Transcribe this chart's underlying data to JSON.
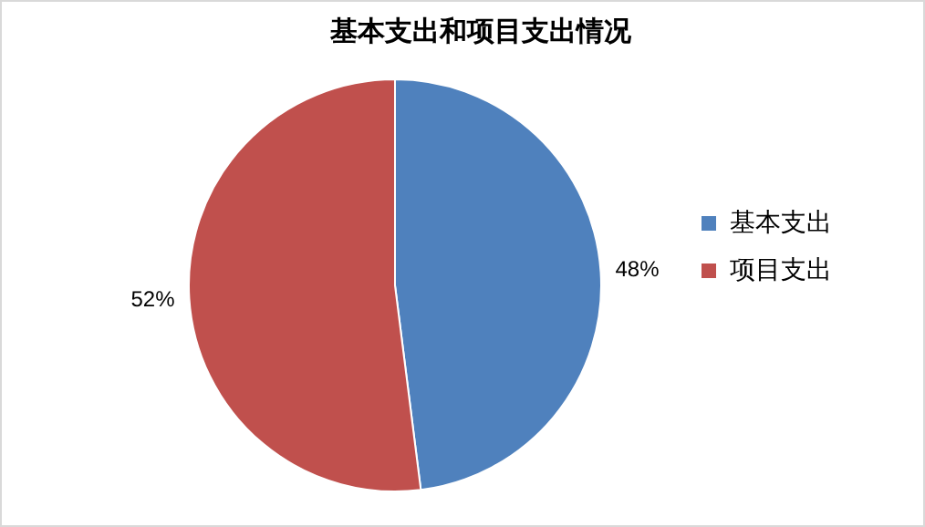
{
  "chart_data": {
    "type": "pie",
    "title": "基本支出和项目支出情况",
    "categories": [
      "基本支出",
      "项目支出"
    ],
    "values": [
      48,
      52
    ],
    "colors": [
      "#4f81bd",
      "#c0504d"
    ],
    "value_labels": [
      "48%",
      "52%"
    ],
    "legend": "right"
  }
}
